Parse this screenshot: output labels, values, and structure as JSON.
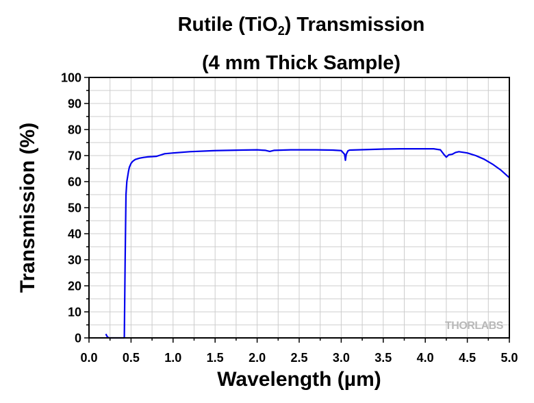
{
  "chart_data": {
    "type": "line",
    "title_line1_prefix": "Rutile (TiO",
    "title_line1_sub": "2",
    "title_line1_suffix": ") Transmission",
    "subtitle": "(4 mm Thick Sample)",
    "xlabel": "Wavelength (µm)",
    "ylabel": "Transmission (%)",
    "xlim": [
      0.0,
      5.0
    ],
    "ylim": [
      0,
      100
    ],
    "x_ticks": [
      "0.0",
      "0.5",
      "1.0",
      "1.5",
      "2.0",
      "2.5",
      "3.0",
      "3.5",
      "4.0",
      "4.5",
      "5.0"
    ],
    "y_ticks": [
      "0",
      "10",
      "20",
      "30",
      "40",
      "50",
      "60",
      "70",
      "80",
      "90",
      "100"
    ],
    "grid": true,
    "watermark": "THORLABS",
    "line_color": "#0000ee",
    "series": [
      {
        "x": [
          0.2,
          0.22,
          0.24,
          0.26,
          0.3,
          0.35,
          0.4,
          0.42,
          0.43,
          0.44,
          0.45,
          0.46,
          0.47,
          0.48,
          0.5,
          0.52,
          0.55,
          0.6,
          0.65,
          0.7,
          0.8,
          0.85,
          0.9,
          1.0,
          1.2,
          1.5,
          1.8,
          2.0,
          2.1,
          2.15,
          2.2,
          2.4,
          2.7,
          2.9,
          3.0,
          3.04,
          3.05,
          3.06,
          3.08,
          3.1,
          3.3,
          3.5,
          3.7,
          3.9,
          4.1,
          4.18,
          4.22,
          4.25,
          4.28,
          4.32,
          4.36,
          4.4,
          4.5,
          4.6,
          4.7,
          4.8,
          4.9,
          5.0
        ],
        "y": [
          1.5,
          0.3,
          0,
          0,
          0,
          0,
          0,
          0,
          30,
          55,
          60,
          62,
          64,
          65.5,
          67,
          67.8,
          68.5,
          69,
          69.3,
          69.5,
          69.7,
          70.2,
          70.7,
          71,
          71.5,
          71.9,
          72.1,
          72.2,
          72,
          71.6,
          72,
          72.2,
          72.2,
          72.1,
          71.9,
          70.5,
          68.2,
          70.5,
          71.8,
          72.1,
          72.3,
          72.5,
          72.6,
          72.6,
          72.6,
          72.2,
          70.5,
          69.4,
          70.3,
          70.5,
          71.2,
          71.5,
          71,
          70,
          68.6,
          66.7,
          64.4,
          61.5
        ]
      }
    ]
  }
}
